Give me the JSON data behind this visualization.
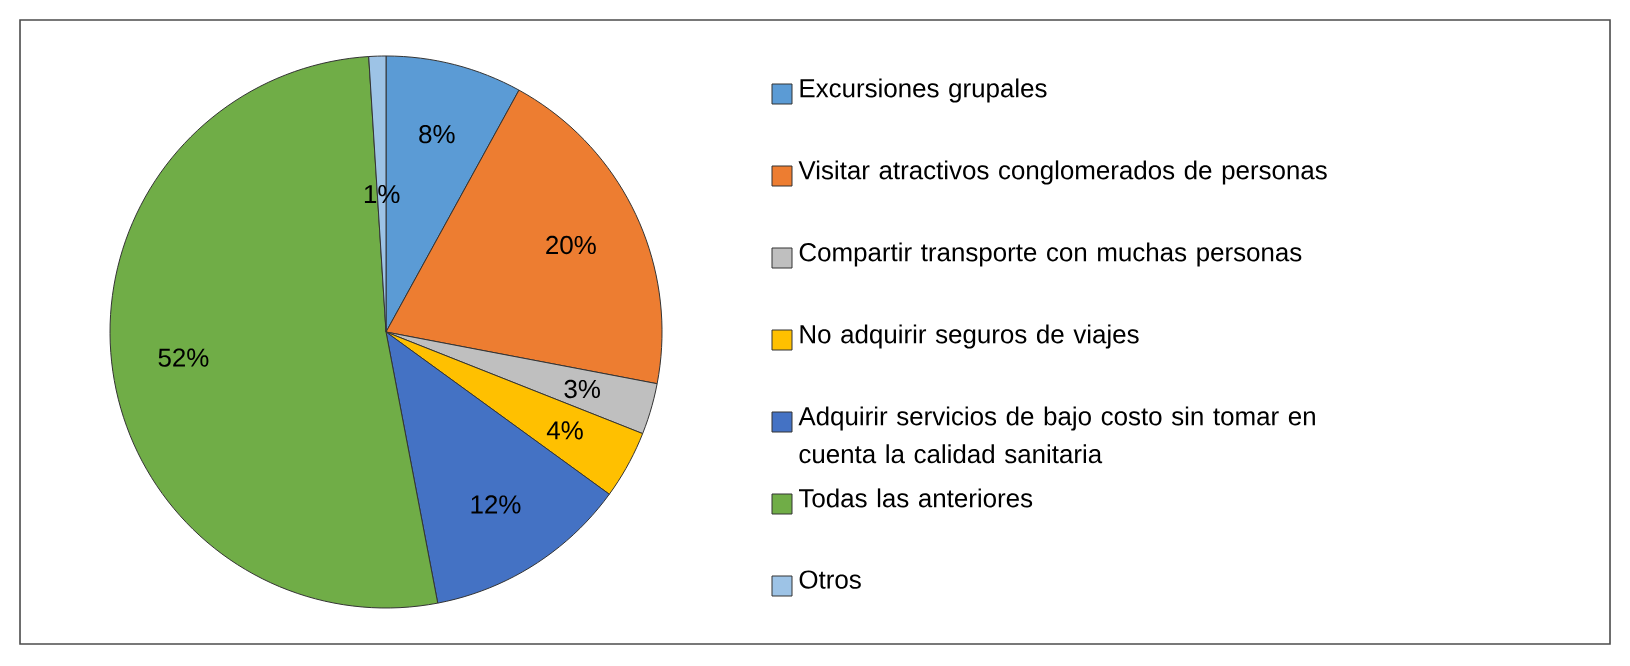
{
  "chart_data": {
    "type": "pie",
    "categories": [
      "Excursiones grupales",
      "Visitar atractivos conglomerados de personas",
      "Compartir transporte con muchas personas",
      "No adquirir seguros de viajes",
      "Adquirir servicios de bajo costo sin tomar en cuenta la calidad sanitaria",
      "Todas las anteriores",
      "Otros"
    ],
    "values": [
      8,
      20,
      3,
      4,
      12,
      52,
      1
    ],
    "value_labels": [
      "8%",
      "20%",
      "3%",
      "4%",
      "12%",
      "52%",
      "1%"
    ],
    "colors": [
      "#5b9bd5",
      "#ed7d31",
      "#bfbfbf",
      "#ffc000",
      "#4472c4",
      "#70ad47",
      "#9dc3e6"
    ],
    "legend": "right"
  }
}
